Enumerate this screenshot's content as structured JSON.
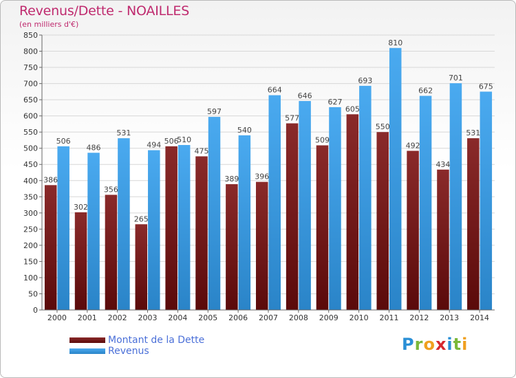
{
  "header": {
    "title": "Revenus/Dette - NOAILLES",
    "subtitle": "(en milliers d'€)"
  },
  "colors": {
    "dette": "#7a1a1a",
    "revenus": "#3d9ee6",
    "title": "#bf2a6e",
    "legend_text": "#4a6fd8"
  },
  "legend": {
    "dette_label": "Montant de la Dette",
    "revenus_label": "Revenus"
  },
  "logo": {
    "letters": [
      "P",
      "r",
      "o",
      "x",
      "i",
      "t",
      "i"
    ],
    "letter_colors": [
      "#2a8fd6",
      "#7ab83a",
      "#f0a020",
      "#d6282f",
      "#2a8fd6",
      "#7ab83a",
      "#f0a020"
    ]
  },
  "chart_data": {
    "type": "bar",
    "title": "Revenus/Dette - NOAILLES",
    "ylabel": "(en milliers d'€)",
    "categories": [
      "2000",
      "2001",
      "2002",
      "2003",
      "2004",
      "2005",
      "2006",
      "2007",
      "2008",
      "2009",
      "2010",
      "2011",
      "2012",
      "2013",
      "2014"
    ],
    "series": [
      {
        "name": "Montant de la Dette",
        "values": [
          386,
          302,
          356,
          265,
          506,
          475,
          389,
          396,
          577,
          509,
          605,
          550,
          492,
          434,
          531
        ]
      },
      {
        "name": "Revenus",
        "values": [
          506,
          486,
          531,
          494,
          510,
          597,
          540,
          664,
          646,
          627,
          693,
          810,
          662,
          701,
          675
        ]
      }
    ],
    "ylim": [
      0,
      850
    ],
    "yticks": [
      0,
      50,
      100,
      150,
      200,
      250,
      300,
      350,
      400,
      450,
      500,
      550,
      600,
      650,
      700,
      750,
      800,
      850
    ],
    "grid": true,
    "legend_position": "bottom-left"
  }
}
